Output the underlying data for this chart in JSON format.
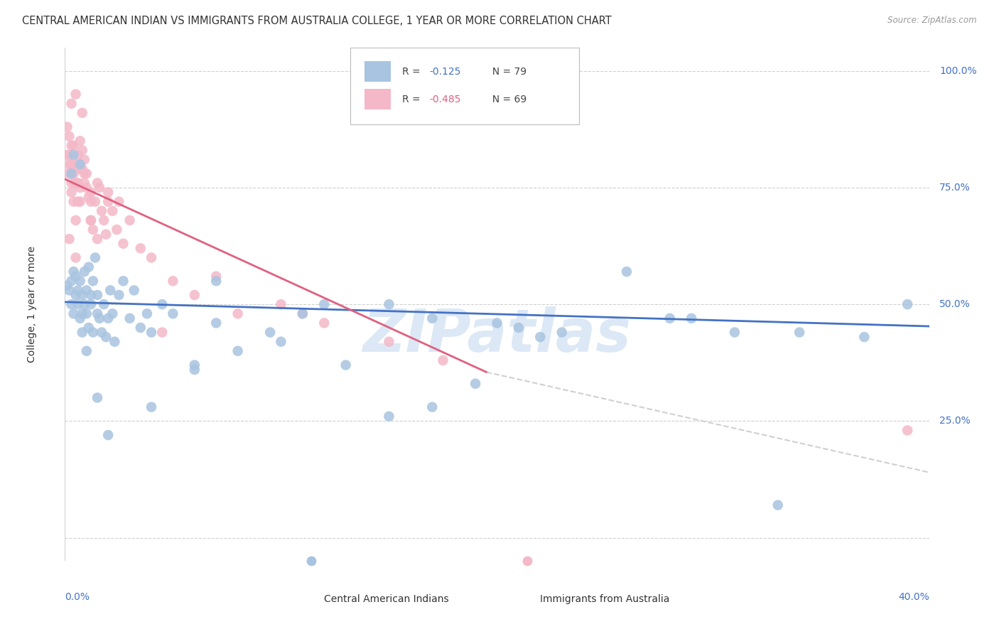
{
  "title": "CENTRAL AMERICAN INDIAN VS IMMIGRANTS FROM AUSTRALIA COLLEGE, 1 YEAR OR MORE CORRELATION CHART",
  "source": "Source: ZipAtlas.com",
  "ylabel": "College, 1 year or more",
  "xlim": [
    0.0,
    0.4
  ],
  "ylim": [
    -0.05,
    1.05
  ],
  "ytick_vals": [
    0.0,
    0.25,
    0.5,
    0.75,
    1.0
  ],
  "ytick_labels": [
    "",
    "25.0%",
    "50.0%",
    "75.0%",
    "100.0%"
  ],
  "xtick_labels": [
    "0.0%",
    "40.0%"
  ],
  "blue_x": [
    0.001,
    0.002,
    0.003,
    0.003,
    0.004,
    0.004,
    0.005,
    0.005,
    0.006,
    0.006,
    0.007,
    0.007,
    0.008,
    0.008,
    0.008,
    0.009,
    0.009,
    0.01,
    0.01,
    0.011,
    0.011,
    0.012,
    0.012,
    0.013,
    0.013,
    0.014,
    0.015,
    0.015,
    0.016,
    0.017,
    0.018,
    0.019,
    0.02,
    0.021,
    0.022,
    0.023,
    0.025,
    0.027,
    0.03,
    0.032,
    0.035,
    0.038,
    0.04,
    0.045,
    0.05,
    0.06,
    0.07,
    0.08,
    0.095,
    0.11,
    0.13,
    0.15,
    0.17,
    0.19,
    0.21,
    0.23,
    0.26,
    0.29,
    0.31,
    0.34,
    0.37,
    0.39,
    0.17,
    0.22,
    0.28,
    0.15,
    0.2,
    0.33,
    0.07,
    0.1,
    0.12,
    0.06,
    0.04,
    0.02,
    0.015,
    0.01,
    0.007,
    0.004,
    0.003
  ],
  "blue_y": [
    0.54,
    0.53,
    0.5,
    0.55,
    0.48,
    0.57,
    0.52,
    0.56,
    0.5,
    0.53,
    0.47,
    0.55,
    0.52,
    0.48,
    0.44,
    0.57,
    0.5,
    0.48,
    0.53,
    0.58,
    0.45,
    0.52,
    0.5,
    0.55,
    0.44,
    0.6,
    0.48,
    0.52,
    0.47,
    0.44,
    0.5,
    0.43,
    0.47,
    0.53,
    0.48,
    0.42,
    0.52,
    0.55,
    0.47,
    0.53,
    0.45,
    0.48,
    0.44,
    0.5,
    0.48,
    0.37,
    0.46,
    0.4,
    0.44,
    0.48,
    0.37,
    0.5,
    0.47,
    0.33,
    0.45,
    0.44,
    0.57,
    0.47,
    0.44,
    0.44,
    0.43,
    0.5,
    0.28,
    0.43,
    0.47,
    0.26,
    0.46,
    0.07,
    0.55,
    0.42,
    0.5,
    0.36,
    0.28,
    0.22,
    0.3,
    0.4,
    0.8,
    0.82,
    0.78
  ],
  "pink_x": [
    0.001,
    0.001,
    0.001,
    0.002,
    0.002,
    0.002,
    0.003,
    0.003,
    0.003,
    0.004,
    0.004,
    0.004,
    0.005,
    0.005,
    0.005,
    0.006,
    0.006,
    0.006,
    0.007,
    0.007,
    0.007,
    0.008,
    0.008,
    0.009,
    0.009,
    0.01,
    0.01,
    0.011,
    0.012,
    0.012,
    0.013,
    0.014,
    0.015,
    0.016,
    0.017,
    0.018,
    0.019,
    0.02,
    0.022,
    0.024,
    0.027,
    0.03,
    0.035,
    0.04,
    0.05,
    0.06,
    0.08,
    0.1,
    0.12,
    0.15,
    0.175,
    0.003,
    0.005,
    0.007,
    0.009,
    0.012,
    0.015,
    0.02,
    0.025,
    0.003,
    0.005,
    0.008,
    0.012,
    0.07,
    0.11,
    0.045,
    0.005,
    0.39,
    0.002
  ],
  "pink_y": [
    0.78,
    0.82,
    0.88,
    0.82,
    0.86,
    0.8,
    0.8,
    0.84,
    0.76,
    0.84,
    0.78,
    0.72,
    0.8,
    0.76,
    0.68,
    0.76,
    0.82,
    0.72,
    0.75,
    0.85,
    0.79,
    0.79,
    0.83,
    0.76,
    0.81,
    0.75,
    0.78,
    0.73,
    0.72,
    0.68,
    0.66,
    0.72,
    0.64,
    0.75,
    0.7,
    0.68,
    0.65,
    0.72,
    0.7,
    0.66,
    0.63,
    0.68,
    0.62,
    0.6,
    0.55,
    0.52,
    0.48,
    0.5,
    0.46,
    0.42,
    0.38,
    0.74,
    0.76,
    0.72,
    0.78,
    0.74,
    0.76,
    0.74,
    0.72,
    0.93,
    0.95,
    0.91,
    0.68,
    0.56,
    0.48,
    0.44,
    0.6,
    0.23,
    0.64
  ],
  "blue_line_x": [
    0.0,
    0.4
  ],
  "blue_line_y": [
    0.505,
    0.453
  ],
  "pink_line_x": [
    0.0,
    0.195
  ],
  "pink_line_y": [
    0.768,
    0.355
  ],
  "diag_line_x": [
    0.195,
    0.4
  ],
  "diag_line_y": [
    0.355,
    0.14
  ],
  "scatter_size": 110,
  "blue_scatter_color": "#a8c4e0",
  "pink_scatter_color": "#f4b8c8",
  "blue_line_color": "#4472c4",
  "pink_line_color": "#e06080",
  "diag_line_color": "#d0d0d0",
  "grid_color": "#d0d0d0",
  "right_tick_color": "#4472c4",
  "title_color": "#333333",
  "source_color": "#999999",
  "label_color": "#333333",
  "watermark_text": "ZIPatlas",
  "watermark_color": "#dce8f5",
  "legend_blue_r_text": "R = ",
  "legend_blue_r_val": "-0.125",
  "legend_blue_n": "  N = 79",
  "legend_pink_r_text": "R = ",
  "legend_pink_r_val": "-0.485",
  "legend_pink_n": "  N = 69",
  "blue_r_color": "#4472c4",
  "pink_r_color": "#e06080"
}
